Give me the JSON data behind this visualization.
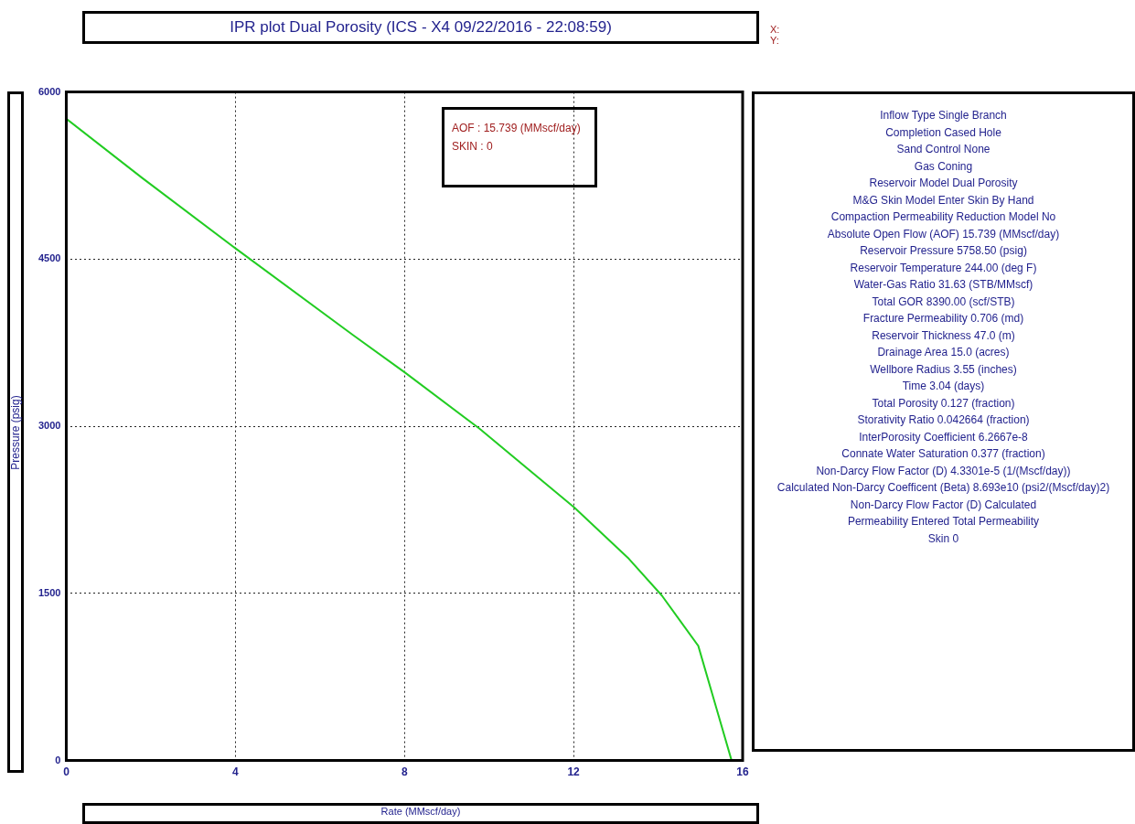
{
  "chart_data": [
    {
      "type": "line",
      "title": "IPR plot  Dual Porosity (ICS - X4 09/22/2016 - 22:08:59)",
      "xlabel": "Rate (MMscf/day)",
      "ylabel": "Pressure (psig)",
      "series": [
        {
          "color": "#22cc22",
          "x": [
            0,
            1.79,
            3.99,
            6.78,
            8.02,
            9.77,
            12.02,
            13.31,
            14.09,
            14.53,
            14.95,
            15.739
          ],
          "values": [
            5760,
            5230,
            4600,
            3820,
            3480,
            2980,
            2270,
            1810,
            1480,
            1250,
            1030,
            0
          ]
        }
      ],
      "xlim": [
        0,
        16
      ],
      "xticks": [
        0,
        4,
        8,
        12,
        16
      ],
      "ylim": [
        0,
        6000
      ],
      "yticks": [
        0,
        1500,
        3000,
        4500,
        6000
      ],
      "grid": true,
      "legend": false,
      "marker": "none",
      "line_style": "solid",
      "annotations": [
        "X:",
        "Y:",
        "AOF :  15.739 (MMscf/day)",
        "SKIN :  0"
      ]
    },
    {
      "type": "other",
      "annotations": [
        "Inflow Type Single Branch",
        "Completion Cased Hole",
        "Sand Control None",
        "Gas Coning",
        "Reservoir Model Dual Porosity",
        "M&G Skin Model Enter Skin By Hand",
        "Compaction Permeability Reduction Model No",
        "Absolute Open Flow (AOF) 15.739 (MMscf/day)",
        "Reservoir Pressure 5758.50 (psig)",
        "Reservoir Temperature 244.00 (deg F)",
        "Water-Gas Ratio 31.63 (STB/MMscf)",
        "Total GOR 8390.00 (scf/STB)",
        "Fracture Permeability 0.706 (md)",
        "Reservoir Thickness 47.0 (m)",
        "Drainage Area 15.0 (acres)",
        "Wellbore Radius 3.55 (inches)",
        "Time 3.04 (days)",
        "Total Porosity 0.127 (fraction)",
        "Storativity Ratio 0.042664 (fraction)",
        "InterPorosity Coefficient 6.2667e-8",
        "Connate Water Saturation 0.377 (fraction)",
        "Non-Darcy Flow Factor (D) 4.3301e-5 (1/(Mscf/day))",
        "Calculated Non-Darcy Coefficent (Beta) 8.693e10 (psi2/(Mscf/day)2)",
        "Non-Darcy Flow Factor (D) Calculated",
        "Permeability Entered Total Permeability",
        "Skin 0"
      ]
    }
  ]
}
